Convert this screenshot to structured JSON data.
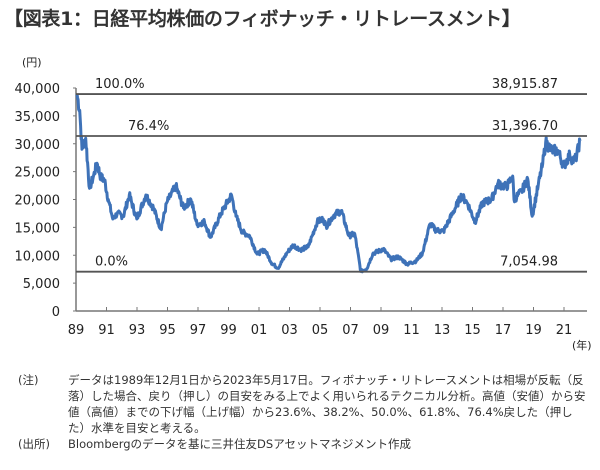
{
  "title": "【図表1：日経平均株価のフィボナッチ・リトレースメント】",
  "chart_data": {
    "type": "line",
    "title": "日経平均株価のフィボナッチ・リトレースメント",
    "ylabel": "(円)",
    "xlabel": "(年)",
    "ylim": [
      0,
      40000
    ],
    "yticks": [
      "40,000",
      "35,000",
      "30,000",
      "25,000",
      "20,000",
      "15,000",
      "10,000",
      "5,000",
      "0"
    ],
    "ytick_values": [
      40000,
      35000,
      30000,
      25000,
      20000,
      15000,
      10000,
      5000,
      0
    ],
    "xticks": [
      "89",
      "91",
      "93",
      "95",
      "97",
      "99",
      "01",
      "03",
      "05",
      "07",
      "09",
      "11",
      "13",
      "15",
      "17",
      "19",
      "21"
    ],
    "series_color": "#3e72b8",
    "line_color": "#555555",
    "levels": [
      {
        "label": "100.0%",
        "value": 38915.87,
        "value_label": "38,915.87"
      },
      {
        "label": "76.4%",
        "value": 31396.7,
        "value_label": "31,396.70"
      },
      {
        "label": "0.0%",
        "value": 7054.98,
        "value_label": "7,054.98"
      }
    ],
    "series": [
      {
        "name": "日経平均株価",
        "x": [
          1989.92,
          1990.1,
          1990.25,
          1990.5,
          1990.75,
          1991.0,
          1991.25,
          1991.5,
          1991.75,
          1992.0,
          1992.3,
          1992.6,
          1993.0,
          1993.4,
          1993.9,
          1994.5,
          1995.0,
          1995.5,
          1995.9,
          1996.5,
          1997.0,
          1997.5,
          1997.9,
          1998.4,
          1998.8,
          1999.5,
          2000.2,
          2000.5,
          2000.9,
          2001.4,
          2001.9,
          2002.4,
          2002.9,
          2003.3,
          2003.9,
          2004.3,
          2004.8,
          2005.3,
          2005.9,
          2006.3,
          2006.5,
          2007.0,
          2007.5,
          2008.0,
          2008.4,
          2008.8,
          2009.2,
          2009.6,
          2010.3,
          2010.8,
          2011.3,
          2011.9,
          2012.5,
          2012.9,
          2013.4,
          2013.8,
          2014.3,
          2014.9,
          2015.5,
          2015.9,
          2016.4,
          2016.9,
          2017.5,
          2017.9,
          2018.5,
          2018.9,
          2018.99,
          2019.5,
          2019.9,
          2020.2,
          2020.6,
          2020.9,
          2021.1,
          2021.5,
          2021.9,
          2022.3,
          2022.7,
          2022.9,
          2023.1,
          2023.38
        ],
        "y": [
          38916,
          36000,
          29000,
          31000,
          22000,
          24000,
          26500,
          24000,
          23500,
          20000,
          16500,
          17500,
          17000,
          20800,
          16500,
          20800,
          18500,
          14700,
          19500,
          22400,
          18500,
          20000,
          15500,
          16000,
          13200,
          17500,
          20800,
          17000,
          14200,
          13500,
          10200,
          11000,
          8500,
          7700,
          10500,
          11800,
          11000,
          11500,
          16000,
          16500,
          15200,
          17200,
          18000,
          13500,
          13800,
          7100,
          7600,
          10300,
          11100,
          9300,
          9700,
          8400,
          9000,
          10400,
          15600,
          14500,
          14300,
          17500,
          20700,
          19300,
          16000,
          19400,
          20000,
          22800,
          22300,
          24200,
          20000,
          21500,
          23700,
          17000,
          22500,
          26400,
          30300,
          28800,
          28800,
          26000,
          28000,
          27000,
          27300,
          30500
        ]
      }
    ]
  },
  "notes": {
    "note_label": "(注)",
    "note_text": "データは1989年12月1日から2023年5月17日。フィボナッチ・リトレースメントは相場が反転（反落）した場合、戻り（押し）の目安をみる上でよく用いられるテクニカル分析。高値（安値）から安値（高値）までの下げ幅（上げ幅）から23.6%、38.2%、50.0%、61.8%、76.4%戻した（押した）水準を目安と考える。",
    "source_label": "(出所)",
    "source_text": "Bloombergのデータを基に三井住友DSアセットマネジメント作成"
  }
}
